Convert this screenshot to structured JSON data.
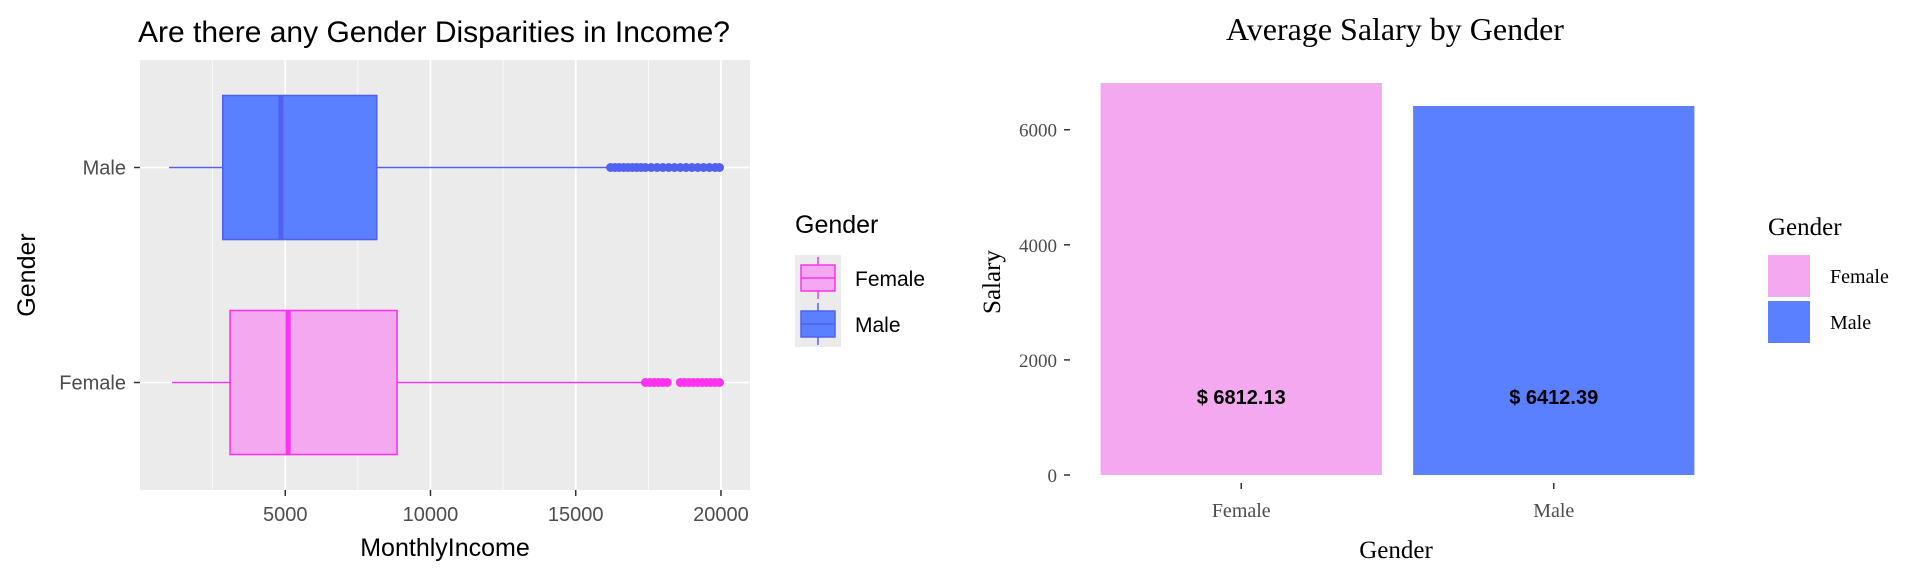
{
  "colors": {
    "female_fill": "#F4A8F0",
    "female_line": "#FF33EE",
    "male_fill": "#5A7FFF",
    "male_line": "#5060F0",
    "panel_bg": "#EBEBEB",
    "grid": "#FFFFFF"
  },
  "chart_data": [
    {
      "type": "boxplot",
      "title": "Are there any Gender Disparities in Income?",
      "xlabel": "MonthlyIncome",
      "ylabel": "Gender",
      "orientation": "horizontal",
      "xlim": [
        0,
        21000
      ],
      "xticks": [
        5000,
        10000,
        15000,
        20000
      ],
      "tick_labels": [
        "5000",
        "10000",
        "15000",
        "20000"
      ],
      "categories": [
        "Female",
        "Male"
      ],
      "grid": true,
      "legend": {
        "title": "Gender",
        "position": "right",
        "entries": [
          "Female",
          "Male"
        ]
      },
      "series": [
        {
          "name": "Female",
          "whisker_low": 1100,
          "q1": 3100,
          "median": 5100,
          "q3": 8850,
          "whisker_high": 17300,
          "outliers": [
            17400,
            17550,
            17700,
            17850,
            18000,
            18150,
            18600,
            18750,
            18900,
            19050,
            19200,
            19350,
            19500,
            19650,
            19800,
            19950
          ]
        },
        {
          "name": "Male",
          "whisker_low": 1000,
          "q1": 2850,
          "median": 4850,
          "q3": 8150,
          "whisker_high": 16100,
          "outliers": [
            16200,
            16350,
            16500,
            16650,
            16800,
            16950,
            17100,
            17250,
            17400,
            17600,
            17800,
            18000,
            18200,
            18400,
            18600,
            18800,
            19000,
            19200,
            19400,
            19600,
            19800,
            19950
          ]
        }
      ]
    },
    {
      "type": "bar",
      "title": "Average Salary by Gender",
      "xlabel": "Gender",
      "ylabel": "Salary",
      "ylim": [
        0,
        6812.13
      ],
      "yticks": [
        0,
        2000,
        4000,
        6000
      ],
      "tick_labels": [
        "0",
        "2000",
        "4000",
        "6000"
      ],
      "categories": [
        "Female",
        "Male"
      ],
      "values": [
        6812.13,
        6412.39
      ],
      "data_labels": [
        "$ 6812.13",
        "$ 6412.39"
      ],
      "grid": false,
      "legend": {
        "title": "Gender",
        "position": "right",
        "entries": [
          "Female",
          "Male"
        ]
      }
    }
  ]
}
